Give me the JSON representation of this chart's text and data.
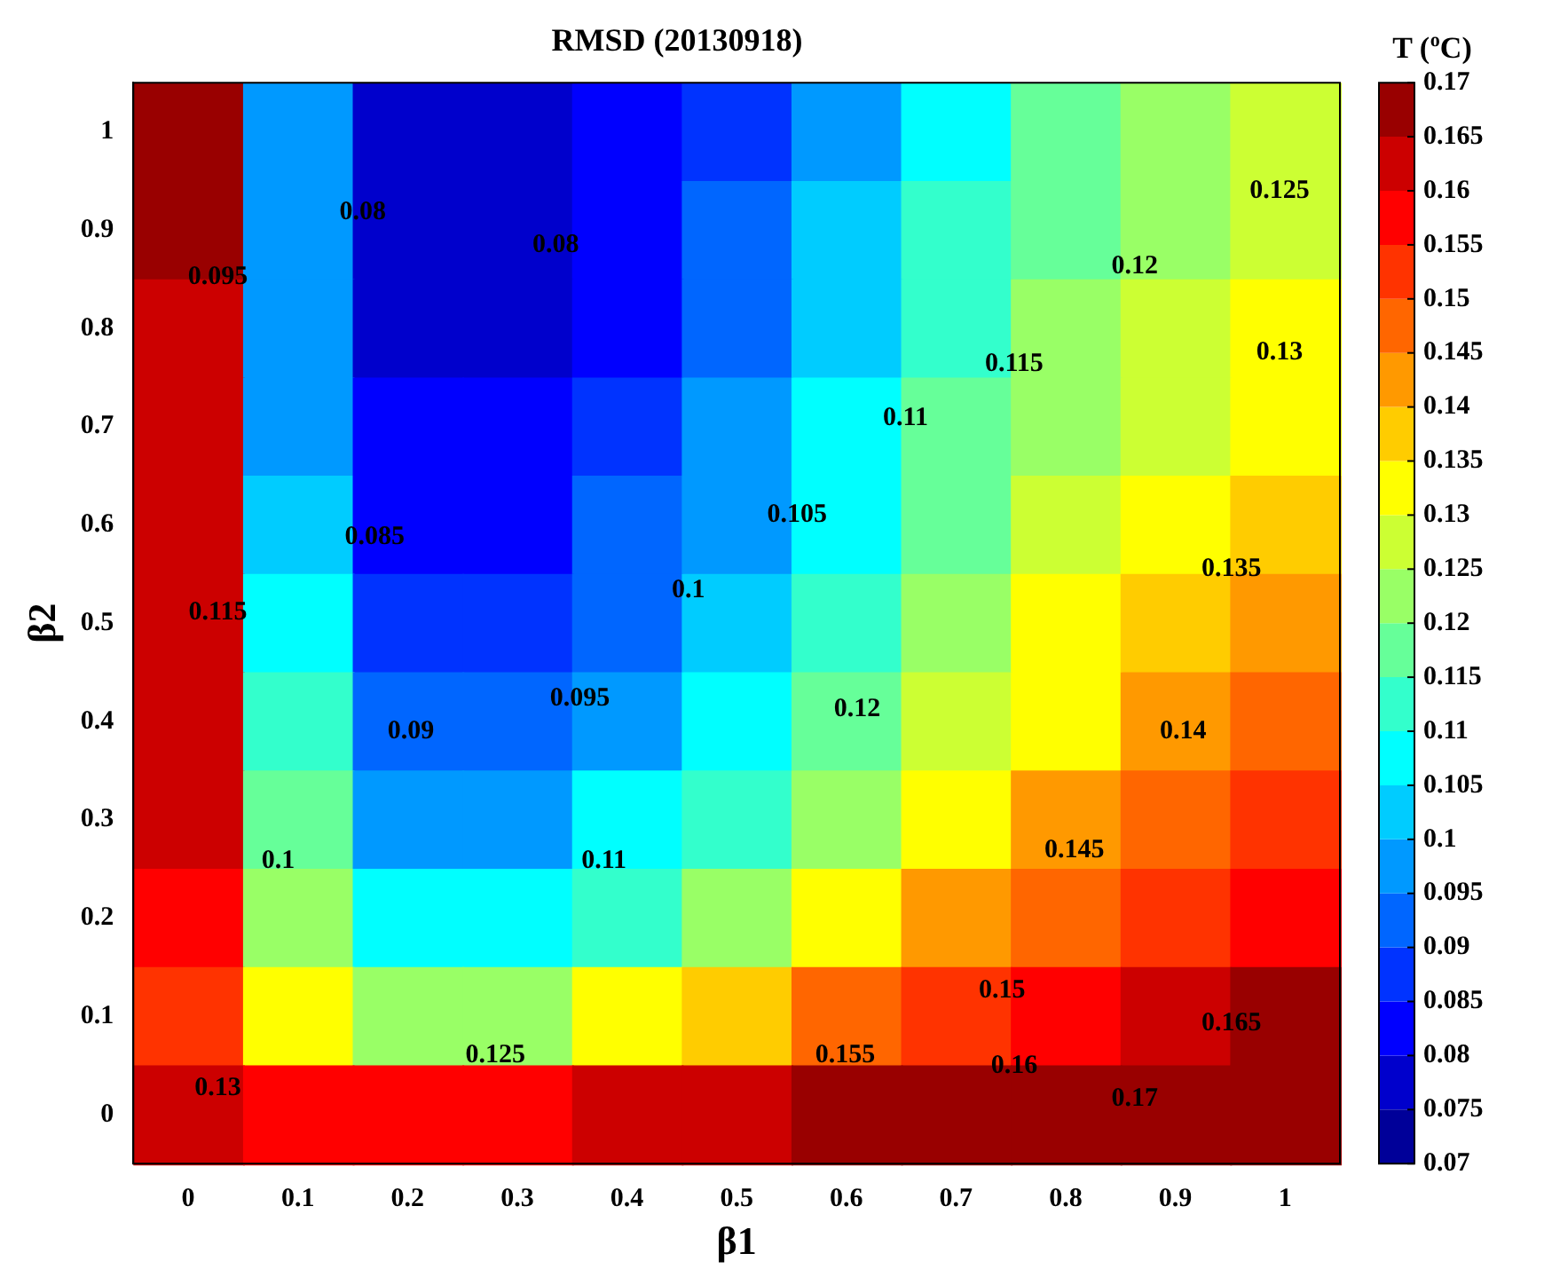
{
  "chart_data": {
    "type": "heatmap",
    "title": "RMSD (20130918)",
    "xlabel": "β1",
    "ylabel": "β2",
    "clabel": "T ($^{o}$C)",
    "categories": [
      "0",
      "0.1",
      "0.2",
      "0.3",
      "0.4",
      "0.5",
      "0.6",
      "0.7",
      "0.8",
      "0.9",
      "1"
    ],
    "y_categories": [
      "1",
      "0.9",
      "0.8",
      "0.7",
      "0.6",
      "0.5",
      "0.4",
      "0.3",
      "0.2",
      "0.1",
      "0"
    ],
    "cells": [
      [
        0.17,
        0.095,
        0.078,
        0.075,
        0.08,
        0.088,
        0.098,
        0.108,
        0.115,
        0.12,
        0.125
      ],
      [
        0.165,
        0.095,
        0.078,
        0.077,
        0.082,
        0.09,
        0.1,
        0.11,
        0.117,
        0.123,
        0.127
      ],
      [
        0.16,
        0.096,
        0.079,
        0.079,
        0.084,
        0.093,
        0.103,
        0.112,
        0.12,
        0.126,
        0.131
      ],
      [
        0.16,
        0.097,
        0.08,
        0.081,
        0.087,
        0.096,
        0.106,
        0.115,
        0.123,
        0.129,
        0.134
      ],
      [
        0.16,
        0.1,
        0.082,
        0.083,
        0.09,
        0.099,
        0.109,
        0.118,
        0.126,
        0.132,
        0.137
      ],
      [
        0.16,
        0.105,
        0.086,
        0.087,
        0.094,
        0.103,
        0.113,
        0.122,
        0.13,
        0.136,
        0.14
      ],
      [
        0.16,
        0.11,
        0.09,
        0.091,
        0.098,
        0.108,
        0.118,
        0.127,
        0.134,
        0.14,
        0.145
      ],
      [
        0.16,
        0.115,
        0.097,
        0.098,
        0.105,
        0.114,
        0.124,
        0.133,
        0.14,
        0.146,
        0.15
      ],
      [
        0.155,
        0.12,
        0.105,
        0.107,
        0.114,
        0.123,
        0.132,
        0.14,
        0.147,
        0.153,
        0.157
      ],
      [
        0.15,
        0.13,
        0.123,
        0.124,
        0.13,
        0.137,
        0.145,
        0.152,
        0.158,
        0.163,
        0.166
      ],
      [
        0.16,
        0.155,
        0.155,
        0.157,
        0.16,
        0.163,
        0.165,
        0.168,
        0.17,
        0.17,
        0.17
      ]
    ],
    "clim": [
      0.07,
      0.17
    ],
    "cticks": [
      0.07,
      0.075,
      0.08,
      0.085,
      0.09,
      0.095,
      0.1,
      0.105,
      0.11,
      0.115,
      0.12,
      0.125,
      0.13,
      0.135,
      0.14,
      0.145,
      0.15,
      0.155,
      0.16,
      0.165,
      0.17
    ],
    "annotations": [
      "0.08",
      "0.08",
      "0.095",
      "0.085",
      "0.115",
      "0.09",
      "0.095",
      "0.1",
      "0.105",
      "0.11",
      "0.115",
      "0.12",
      "0.125",
      "0.13",
      "0.135",
      "0.12",
      "0.11",
      "0.1",
      "0.14",
      "0.145",
      "0.15",
      "0.155",
      "0.16",
      "0.165",
      "0.17",
      "0.125",
      "0.13"
    ]
  }
}
